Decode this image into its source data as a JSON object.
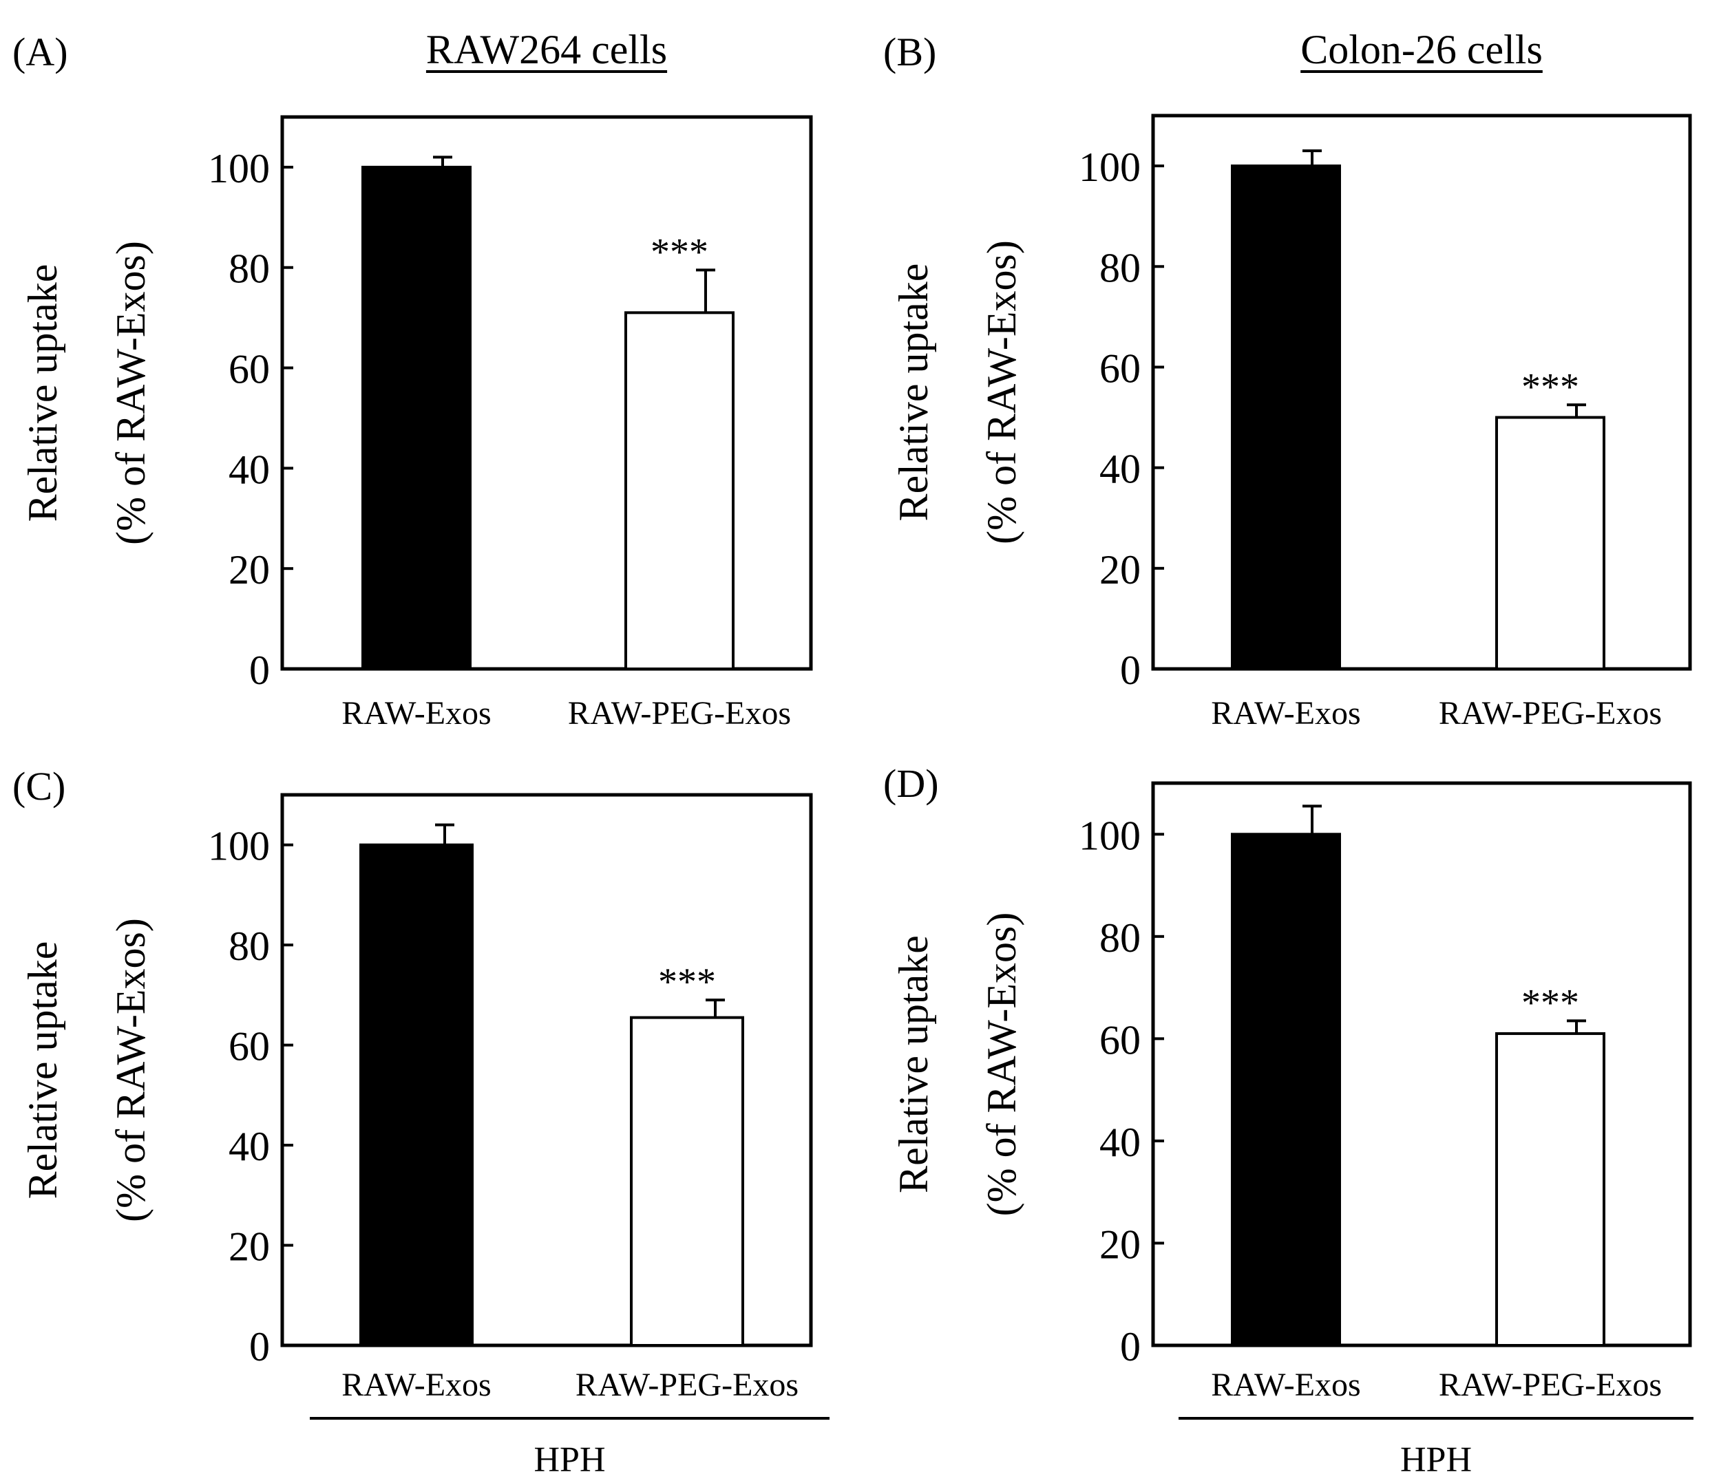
{
  "figure": {
    "colors": {
      "bar_dark": "#000000",
      "bar_light": "#ffffff",
      "axis": "#000000"
    },
    "panels": [
      {
        "id": "A",
        "label": "(A)",
        "title": "RAW264  cells",
        "group_label": ""
      },
      {
        "id": "B",
        "label": "(B)",
        "title": "Colon-26  cells",
        "group_label": ""
      },
      {
        "id": "C",
        "label": "(C)",
        "title": "",
        "group_label": "HPH"
      },
      {
        "id": "D",
        "label": "(D)",
        "title": "",
        "group_label": "HPH"
      }
    ]
  },
  "chart_data": [
    {
      "type": "bar",
      "panel": "A",
      "title": "RAW264  cells",
      "categories": [
        "RAW-Exos",
        "RAW-PEG-Exos"
      ],
      "values": [
        100,
        71
      ],
      "errors": [
        2,
        8.5
      ],
      "annotations": [
        "",
        "***"
      ],
      "ylabel": [
        "Relative  uptake",
        "(% of RAW-Exos)"
      ],
      "xlabel": "",
      "ylim": [
        0,
        110
      ],
      "yticks": [
        0,
        20,
        40,
        60,
        80,
        100
      ]
    },
    {
      "type": "bar",
      "panel": "B",
      "title": "Colon-26  cells",
      "categories": [
        "RAW-Exos",
        "RAW-PEG-Exos"
      ],
      "values": [
        100,
        50
      ],
      "errors": [
        3,
        2.5
      ],
      "annotations": [
        "",
        "***"
      ],
      "ylabel": [
        "Relative  uptake",
        "(% of RAW-Exos)"
      ],
      "xlabel": "",
      "ylim": [
        0,
        110
      ],
      "yticks": [
        0,
        20,
        40,
        60,
        80,
        100
      ]
    },
    {
      "type": "bar",
      "panel": "C",
      "title": "",
      "categories": [
        "RAW-Exos",
        "RAW-PEG-Exos"
      ],
      "values": [
        100,
        65.5
      ],
      "errors": [
        4,
        3.5
      ],
      "annotations": [
        "",
        "***"
      ],
      "ylabel": [
        "Relative  uptake",
        "(% of RAW-Exos)"
      ],
      "xlabel": "HPH",
      "ylim": [
        0,
        110
      ],
      "yticks": [
        0,
        20,
        40,
        60,
        80,
        100
      ]
    },
    {
      "type": "bar",
      "panel": "D",
      "title": "",
      "categories": [
        "RAW-Exos",
        "RAW-PEG-Exos"
      ],
      "values": [
        100,
        61
      ],
      "errors": [
        5.5,
        2.5
      ],
      "annotations": [
        "",
        "***"
      ],
      "ylabel": [
        "Relative  uptake",
        "(% of RAW-Exos)"
      ],
      "xlabel": "HPH",
      "ylim": [
        0,
        110
      ],
      "yticks": [
        0,
        20,
        40,
        60,
        80,
        100
      ]
    }
  ]
}
